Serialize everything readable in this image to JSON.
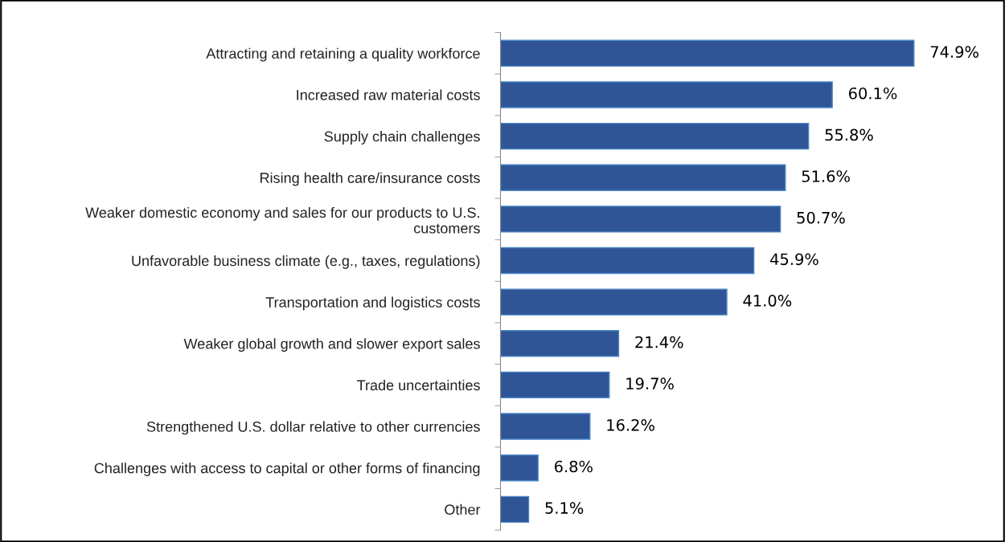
{
  "chart_data": {
    "type": "bar",
    "orientation": "horizontal",
    "categories": [
      "Attracting and retaining a quality workforce",
      "Increased raw material costs",
      "Supply chain challenges",
      "Rising health care/insurance costs",
      "Weaker domestic economy and sales for our products to U.S.\ncustomers",
      "Unfavorable business climate (e.g., taxes, regulations)",
      "Transportation and logistics costs",
      "Weaker global growth and slower export sales",
      "Trade uncertainties",
      "Strengthened U.S. dollar relative to other currencies",
      "Challenges with access to capital or other forms of financing",
      "Other"
    ],
    "values": [
      74.9,
      60.1,
      55.8,
      51.6,
      50.7,
      45.9,
      41.0,
      21.4,
      19.7,
      16.2,
      6.8,
      5.1
    ],
    "value_labels": [
      "74.9%",
      "60.1%",
      "55.8%",
      "51.6%",
      "50.7%",
      "45.9%",
      "41.0%",
      "21.4%",
      "19.7%",
      "16.2%",
      "6.8%",
      "5.1%"
    ],
    "color": "#2f5597",
    "grid": false,
    "legend": false
  }
}
